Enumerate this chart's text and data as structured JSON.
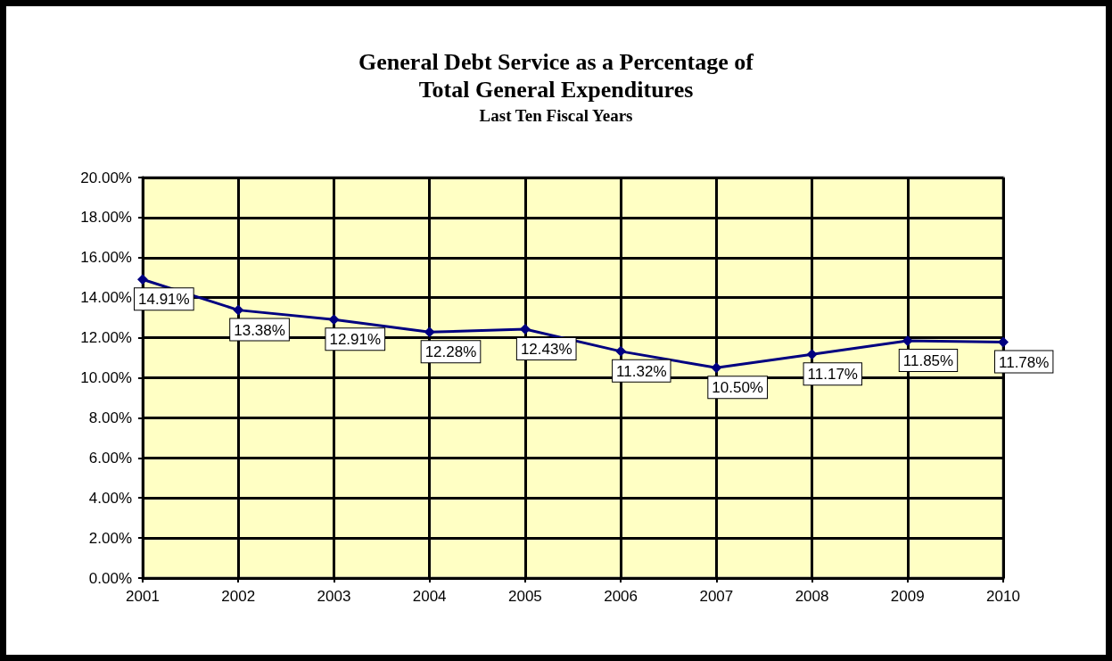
{
  "chart_data": {
    "type": "line",
    "title": "General Debt Service as a Percentage of\nTotal General Expenditures",
    "subtitle": "Last Ten Fiscal Years",
    "categories": [
      "2001",
      "2002",
      "2003",
      "2004",
      "2005",
      "2006",
      "2007",
      "2008",
      "2009",
      "2010"
    ],
    "series": [
      {
        "color": "#000080",
        "values": [
          14.91,
          13.38,
          12.91,
          12.28,
          12.43,
          11.32,
          10.5,
          11.17,
          11.85,
          11.78
        ],
        "value_labels": [
          "14.91%",
          "13.38%",
          "12.91%",
          "12.28%",
          "12.43%",
          "11.32%",
          "10.50%",
          "11.17%",
          "11.85%",
          "11.78%"
        ]
      }
    ],
    "ylim": [
      0,
      20
    ],
    "yticks": [
      {
        "value": 0,
        "label": "0.00%"
      },
      {
        "value": 2,
        "label": "2.00%"
      },
      {
        "value": 4,
        "label": "4.00%"
      },
      {
        "value": 6,
        "label": "6.00%"
      },
      {
        "value": 8,
        "label": "8.00%"
      },
      {
        "value": 10,
        "label": "10.00%"
      },
      {
        "value": 12,
        "label": "12.00%"
      },
      {
        "value": 14,
        "label": "14.00%"
      },
      {
        "value": 16,
        "label": "16.00%"
      },
      {
        "value": 18,
        "label": "18.00%"
      },
      {
        "value": 20,
        "label": "20.00%"
      }
    ],
    "grid": true,
    "marker": "diamond",
    "line_style": "solid"
  }
}
